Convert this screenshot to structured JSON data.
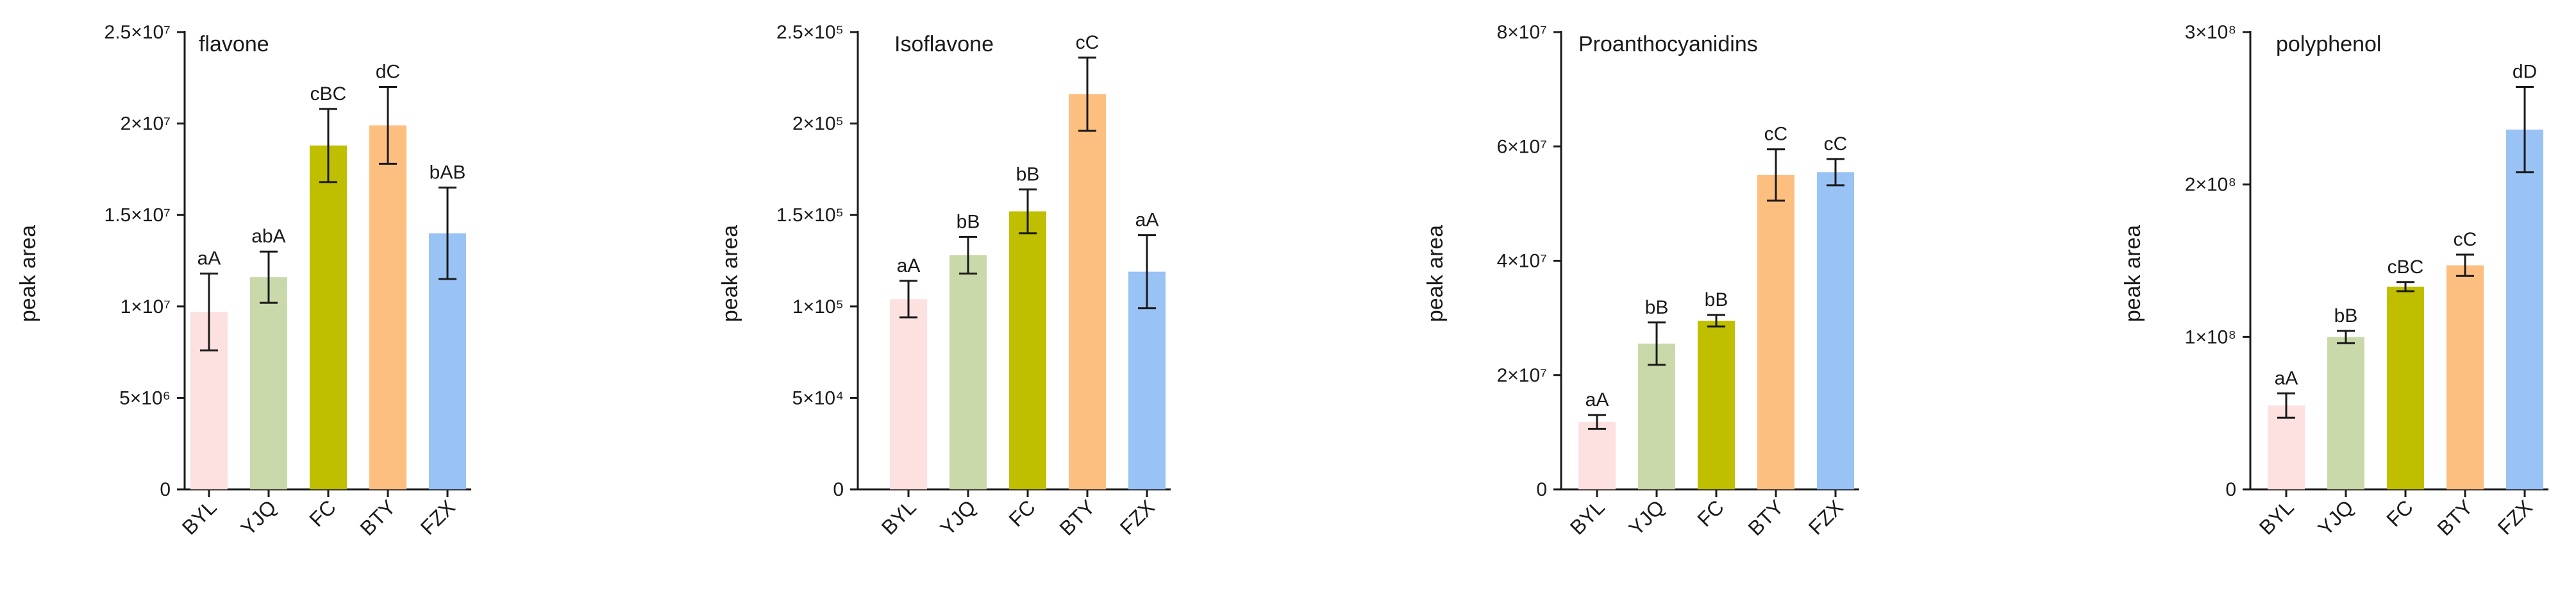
{
  "chart_data": [
    {
      "type": "bar",
      "title": "flavone",
      "ylabel": "peak area",
      "xlabel": "",
      "categories": [
        "BYL",
        "YJQ",
        "FC",
        "BTY",
        "FZX"
      ],
      "values": [
        9700000,
        11600000,
        18800000,
        19900000,
        14000000
      ],
      "errors": [
        2100000,
        1400000,
        2000000,
        2100000,
        2500000
      ],
      "significance": [
        "aA",
        "abA",
        "cBC",
        "dC",
        "bAB"
      ],
      "colors": [
        "#fde0e0",
        "#c9d9a9",
        "#bfbf00",
        "#fdbf80",
        "#99c2f5"
      ],
      "ylim": [
        0,
        25000000
      ],
      "yticks": [
        {
          "value": 0,
          "label": "0"
        },
        {
          "value": 5000000,
          "label": "5×10⁶"
        },
        {
          "value": 10000000,
          "label": "1×10⁷"
        },
        {
          "value": 15000000,
          "label": "1.5×10⁷"
        },
        {
          "value": 20000000,
          "label": "2×10⁷"
        },
        {
          "value": 25000000,
          "label": "2.5×10⁷"
        }
      ]
    },
    {
      "type": "bar",
      "title": "Isoflavone",
      "ylabel": "peak area",
      "xlabel": "",
      "categories": [
        "BYL",
        "YJQ",
        "FC",
        "BTY",
        "FZX"
      ],
      "values": [
        104000,
        128000,
        152000,
        216000,
        119000
      ],
      "errors": [
        10000,
        10000,
        12000,
        20000,
        20000
      ],
      "significance": [
        "aA",
        "bB",
        "bB",
        "cC",
        "aA"
      ],
      "colors": [
        "#fde0e0",
        "#c9d9a9",
        "#bfbf00",
        "#fdbf80",
        "#99c2f5"
      ],
      "ylim": [
        0,
        250000
      ],
      "yticks": [
        {
          "value": 0,
          "label": "0"
        },
        {
          "value": 50000,
          "label": "5×10⁴"
        },
        {
          "value": 100000,
          "label": "1×10⁵"
        },
        {
          "value": 150000,
          "label": "1.5×10⁵"
        },
        {
          "value": 200000,
          "label": "2×10⁵"
        },
        {
          "value": 250000,
          "label": "2.5×10⁵"
        }
      ]
    },
    {
      "type": "bar",
      "title": "Proanthocyanidins",
      "ylabel": "peak area",
      "xlabel": "",
      "categories": [
        "BYL",
        "YJQ",
        "FC",
        "BTY",
        "FZX"
      ],
      "values": [
        11800000,
        25500000,
        29500000,
        55000000,
        55500000
      ],
      "errors": [
        1200000,
        3700000,
        1000000,
        4500000,
        2300000
      ],
      "significance": [
        "aA",
        "bB",
        "bB",
        "cC",
        "cC"
      ],
      "colors": [
        "#fde0e0",
        "#c9d9a9",
        "#bfbf00",
        "#fdbf80",
        "#99c2f5"
      ],
      "ylim": [
        0,
        80000000
      ],
      "yticks": [
        {
          "value": 0,
          "label": "0"
        },
        {
          "value": 20000000,
          "label": "2×10⁷"
        },
        {
          "value": 40000000,
          "label": "4×10⁷"
        },
        {
          "value": 60000000,
          "label": "6×10⁷"
        },
        {
          "value": 80000000,
          "label": "8×10⁷"
        }
      ]
    },
    {
      "type": "bar",
      "title": "polyphenol",
      "ylabel": "peak area",
      "xlabel": "",
      "categories": [
        "BYL",
        "YJQ",
        "FC",
        "BTY",
        "FZX"
      ],
      "values": [
        55000000,
        100000000,
        133000000,
        147000000,
        236000000
      ],
      "errors": [
        8000000,
        4000000,
        3000000,
        7000000,
        28000000
      ],
      "significance": [
        "aA",
        "bB",
        "cBC",
        "cC",
        "dD"
      ],
      "colors": [
        "#fde0e0",
        "#c9d9a9",
        "#bfbf00",
        "#fdbf80",
        "#99c2f5"
      ],
      "ylim": [
        0,
        300000000
      ],
      "yticks": [
        {
          "value": 0,
          "label": "0"
        },
        {
          "value": 100000000,
          "label": "1×10⁸"
        },
        {
          "value": 200000000,
          "label": "2×10⁸"
        },
        {
          "value": 300000000,
          "label": "3×10⁸"
        }
      ]
    }
  ]
}
